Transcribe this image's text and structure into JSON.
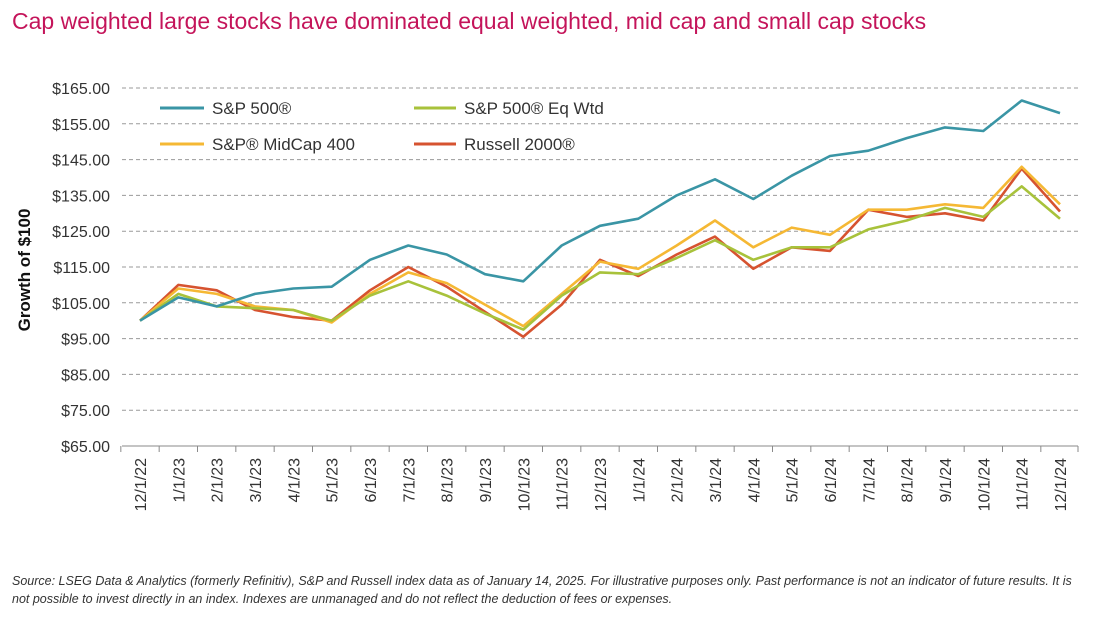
{
  "chart_data": {
    "type": "line",
    "title": "Cap weighted large stocks have dominated equal weighted, mid cap and small cap stocks",
    "ylabel": "Growth of $100",
    "xlabel": "",
    "ylim": [
      65,
      165
    ],
    "yticks": [
      "$65.00",
      "$75.00",
      "$85.00",
      "$95.00",
      "$105.00",
      "$115.00",
      "$125.00",
      "$135.00",
      "$145.00",
      "$155.00",
      "$165.00"
    ],
    "ytick_values": [
      65,
      75,
      85,
      95,
      105,
      115,
      125,
      135,
      145,
      155,
      165
    ],
    "grid": "horizontal dashed",
    "legend_position": "top-left",
    "x": [
      "12/1/22",
      "1/1/23",
      "2/1/23",
      "3/1/23",
      "4/1/23",
      "5/1/23",
      "6/1/23",
      "7/1/23",
      "8/1/23",
      "9/1/23",
      "10/1/23",
      "11/1/23",
      "12/1/23",
      "1/1/24",
      "2/1/24",
      "3/1/24",
      "4/1/24",
      "5/1/24",
      "6/1/24",
      "7/1/24",
      "8/1/24",
      "9/1/24",
      "10/1/24",
      "11/1/24",
      "12/1/24"
    ],
    "series": [
      {
        "name": "S&P 500®",
        "color": "#3a95a5",
        "values": [
          100,
          106.5,
          104,
          107.5,
          109,
          109.5,
          117,
          121,
          118.5,
          113,
          111,
          121,
          126.5,
          128.5,
          135,
          139.5,
          134,
          140.5,
          146,
          147.5,
          151,
          154,
          153,
          161.5,
          158
        ]
      },
      {
        "name": "S&P 500® Eq Wtd",
        "color": "#a8c23b",
        "values": [
          100,
          107.5,
          104,
          103.5,
          103,
          100,
          107,
          111,
          107,
          102,
          97.5,
          107,
          113.5,
          113,
          117.5,
          122.5,
          117,
          120.5,
          120.5,
          125.5,
          128,
          131.5,
          129,
          137.5,
          128.5
        ]
      },
      {
        "name": "S&P® MidCap 400",
        "color": "#f5b834",
        "values": [
          100,
          109,
          107.5,
          104,
          103,
          99.5,
          107.5,
          113.5,
          110.5,
          104.5,
          98.5,
          107.5,
          116.5,
          114.5,
          121,
          128,
          120.5,
          126,
          124,
          131,
          131,
          132.5,
          131.5,
          143,
          132.5
        ]
      },
      {
        "name": "Russell 2000®",
        "color": "#d65330",
        "values": [
          100,
          110,
          108.5,
          103,
          101,
          100,
          108.5,
          115,
          109.5,
          102.5,
          95.5,
          104.5,
          117,
          112.5,
          118.5,
          123.5,
          114.5,
          120.5,
          119.5,
          131,
          129,
          130,
          128,
          142.5,
          130.5
        ]
      }
    ],
    "legend": {
      "sp500": "S&P 500®",
      "eqwtd": "S&P 500® Eq Wtd",
      "midcap": "S&P® MidCap 400",
      "russell": "Russell 2000®"
    }
  },
  "footer": {
    "source": "Source: LSEG Data & Analytics (formerly Refinitiv), S&P and Russell index data as of January 14, 2025. For illustrative purposes only. Past performance is not an indicator of future results. It is not possible to invest directly in an index. Indexes are unmanaged and do not reflect the deduction of fees or expenses."
  }
}
